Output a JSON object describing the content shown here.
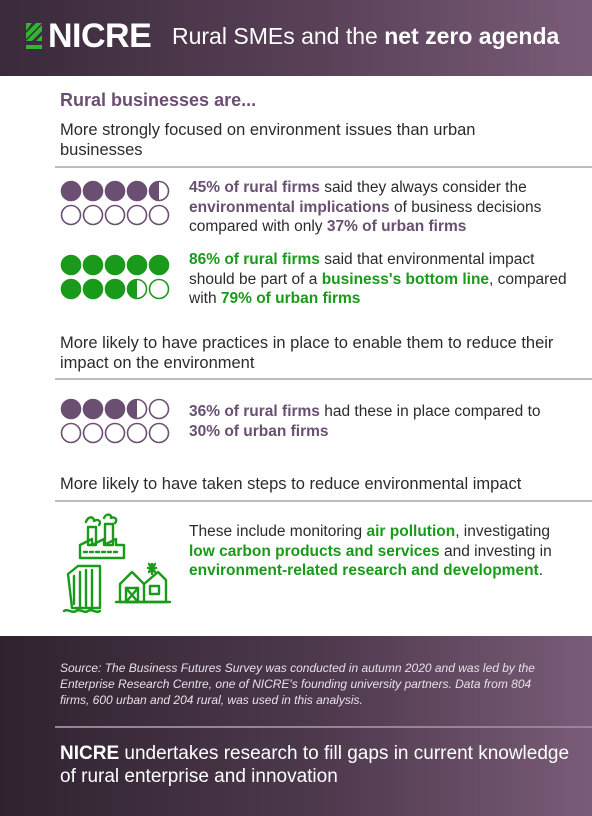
{
  "header": {
    "logo_text": "NICRE",
    "title_part1": "Rural SMEs and the ",
    "title_bold": "net zero agenda"
  },
  "section_heading": "Rural businesses are...",
  "block1": {
    "intro": "More strongly focused on environment issues than urban businesses",
    "stat1": {
      "p1_bold": "45% of rural firms",
      "p2": " said they always consider the ",
      "p3_bold": "environmental implications",
      "p4": " of business decisions compared with only ",
      "p5_bold": "37% of urban firms",
      "filled_fraction": 0.45,
      "color": "#6b4f72"
    },
    "stat2": {
      "p1_bold": "86% of rural firms",
      "p2": " said that environmental impact should be part of a ",
      "p3_bold": "business's bottom line",
      "p4": ", compared with ",
      "p5_bold": "79% of urban firms",
      "filled_fraction": 0.86,
      "color": "#1a9a1a"
    }
  },
  "block2": {
    "intro": "More likely to have practices in place to enable them to reduce their impact on the environment",
    "stat": {
      "p1_bold": "36% of rural firms",
      "p2": " had these in place compared to ",
      "p3_bold": "30% of urban firms",
      "filled_fraction": 0.36,
      "color": "#6b4f72"
    }
  },
  "block3": {
    "intro": "More likely to have taken steps to reduce environmental impact",
    "stat": {
      "p1": "These include monitoring ",
      "p2_bold": "air pollution",
      "p3": ", investigating ",
      "p4_bold": "low carbon products and services",
      "p5": " and investing in ",
      "p6_bold": "environment-related research and development",
      "p7": "."
    },
    "icon": "factory-farm-dam-icon"
  },
  "footer": {
    "source": "Source: The Business Futures Survey was conducted in autumn 2020 and was led by the Enterprise Research Centre, one of NICRE's founding university partners. Data from 804 firms, 600 urban and 204 rural, was used in this analysis.",
    "tagline_bold": "NICRE",
    "tagline_rest": " undertakes research to fill gaps in current knowledge of rural enterprise and innovation"
  },
  "colors": {
    "purple": "#6b4f72",
    "green": "#1a9a1a",
    "header_bg": "#3a2a3a"
  }
}
